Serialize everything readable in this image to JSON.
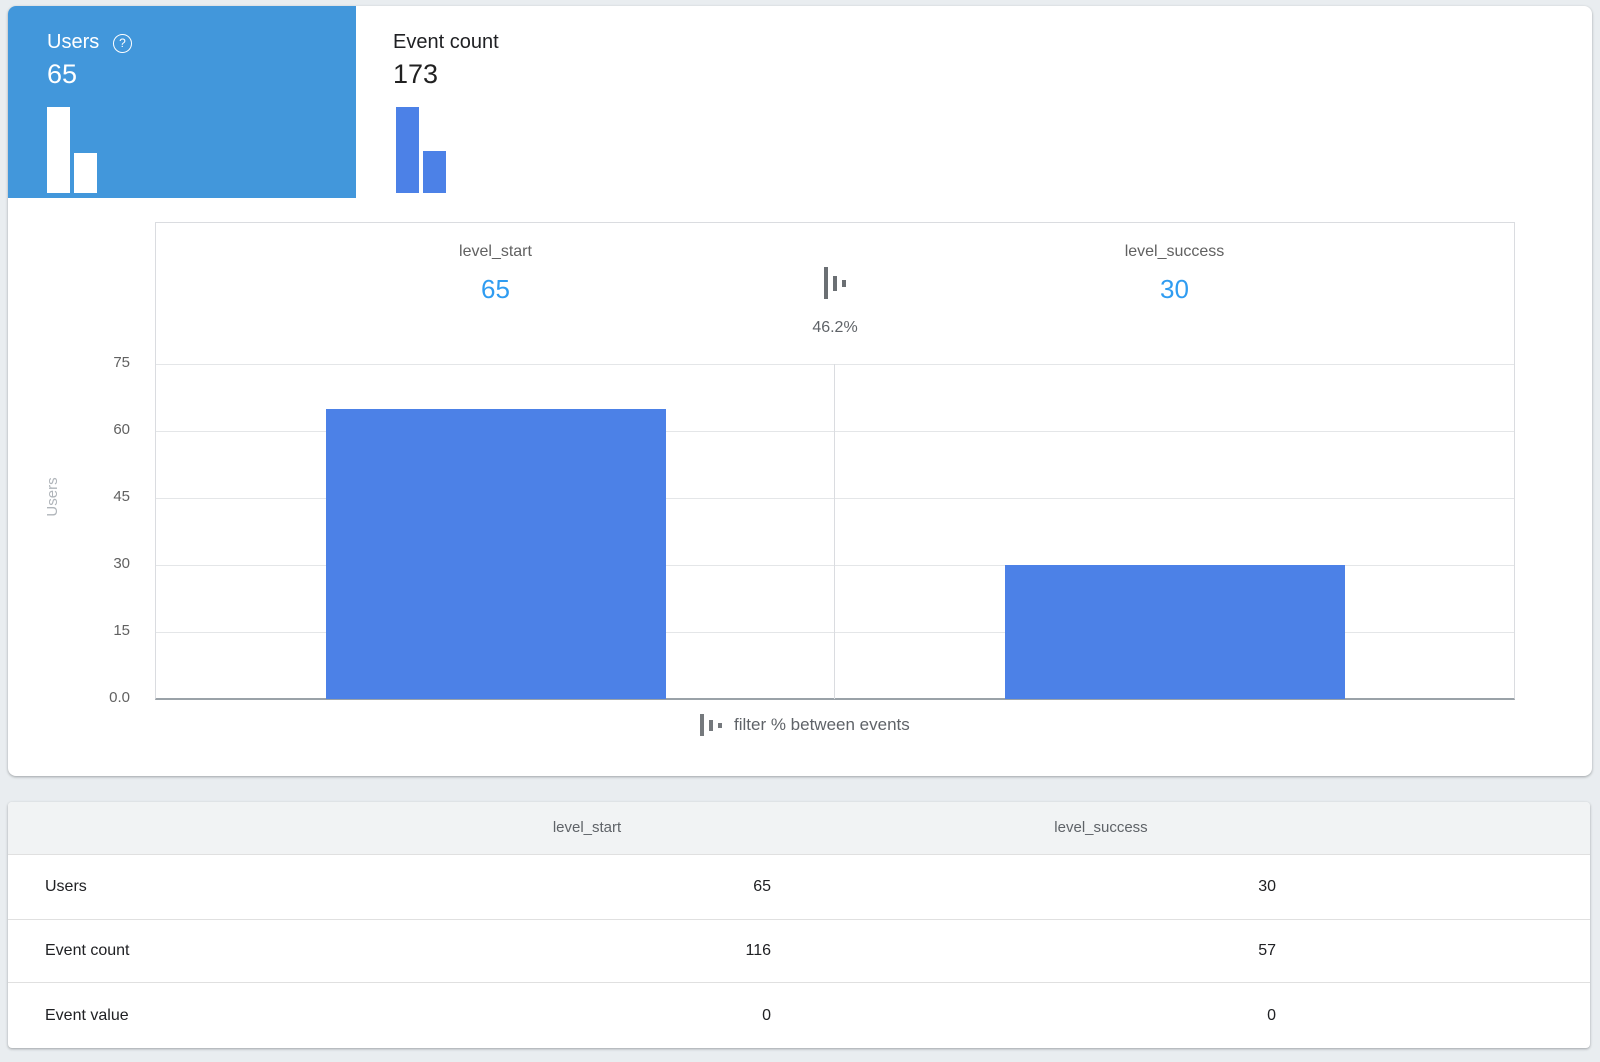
{
  "metric_cards": {
    "users": {
      "label": "Users",
      "value": "65",
      "help_icon": "?",
      "spark": [
        65,
        30
      ],
      "selected": true
    },
    "event_count": {
      "label": "Event count",
      "value": "173",
      "spark": [
        116,
        57
      ],
      "selected": false
    }
  },
  "funnel": {
    "steps": [
      {
        "name": "level_start",
        "value": "65"
      },
      {
        "name": "level_success",
        "value": "30"
      }
    ],
    "conversion_percent": "46.2%",
    "filter_hint": "filter % between events",
    "y_axis": {
      "title": "Users",
      "ticks": [
        "75",
        "60",
        "45",
        "30",
        "15",
        "0.0"
      ]
    }
  },
  "chart_data": {
    "type": "bar",
    "title": "",
    "categories": [
      "level_start",
      "level_success"
    ],
    "values": [
      65,
      30
    ],
    "xlabel": "",
    "ylabel": "Users",
    "ylim": [
      0,
      75
    ],
    "yticks": [
      75,
      60,
      45,
      30,
      15,
      0
    ],
    "grid": true,
    "legend": "none",
    "bar_color": "#4c81e7",
    "annotations": [
      {
        "between": [
          "level_start",
          "level_success"
        ],
        "label": "46.2%"
      }
    ]
  },
  "table": {
    "columns": [
      "level_start",
      "level_success"
    ],
    "rows": [
      {
        "label": "Users",
        "values": [
          "65",
          "30"
        ]
      },
      {
        "label": "Event count",
        "values": [
          "116",
          "57"
        ]
      },
      {
        "label": "Event value",
        "values": [
          "0",
          "0"
        ]
      }
    ]
  },
  "colors": {
    "selected_tab_blue": "#4297db",
    "bar_blue": "#4c81e7",
    "value_blue": "#2f9cf1",
    "text_dark": "#202124",
    "text_gray": "#5f6368",
    "page_background": "#e9edf0",
    "table_header_background": "#f1f3f4"
  }
}
